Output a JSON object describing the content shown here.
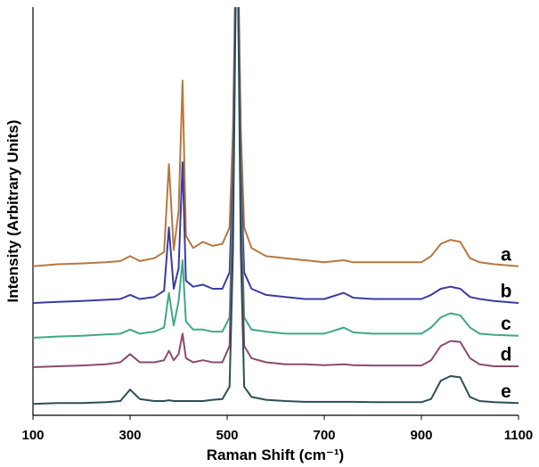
{
  "chart_data": {
    "type": "line",
    "x_label": "Raman Shift (cm⁻¹)",
    "y_label": "Intensity (Arbitrary Units)",
    "x": [
      100,
      150,
      200,
      250,
      280,
      300,
      320,
      350,
      370,
      380,
      390,
      400,
      408,
      415,
      430,
      450,
      470,
      490,
      505,
      512,
      520,
      528,
      535,
      550,
      580,
      620,
      660,
      700,
      740,
      760,
      800,
      850,
      900,
      920,
      940,
      960,
      980,
      1000,
      1020,
      1050,
      1100
    ],
    "xlim": [
      100,
      1100
    ],
    "xticks": [
      100,
      300,
      500,
      700,
      900,
      1100
    ],
    "ylim": [
      0,
      100
    ],
    "series": [
      {
        "name": "a",
        "color": "#b8773f",
        "values": [
          36.5,
          37,
          37.2,
          37.5,
          37.8,
          39,
          37.8,
          38.5,
          40,
          61.5,
          40.5,
          50,
          82,
          44,
          41,
          42.5,
          41.5,
          42,
          46,
          70,
          130,
          70,
          46,
          41,
          39,
          38.5,
          38,
          37.5,
          38,
          37.5,
          37.5,
          37.5,
          37.5,
          39,
          42,
          43,
          42.5,
          38.5,
          37.5,
          37,
          36.5
        ]
      },
      {
        "name": "b",
        "color": "#3a3ca0",
        "values": [
          27.5,
          27.8,
          28,
          28.3,
          28.5,
          29.5,
          28.5,
          29,
          30.5,
          46,
          31,
          36,
          62,
          33,
          31.5,
          32,
          31,
          31,
          35,
          60,
          130,
          60,
          35,
          31,
          29.5,
          29,
          28.5,
          28.5,
          30,
          28.8,
          28.5,
          28.5,
          28.5,
          29.5,
          31,
          31.5,
          31,
          29,
          28.5,
          28,
          27.5
        ]
      },
      {
        "name": "c",
        "color": "#3fa883",
        "values": [
          19,
          19.3,
          19.5,
          19.8,
          20,
          21,
          20,
          20.5,
          21.5,
          30,
          22,
          28,
          38,
          23,
          21,
          21,
          20.5,
          20.5,
          24,
          55,
          130,
          55,
          24,
          21,
          20.5,
          20,
          20,
          20,
          21.5,
          20.3,
          20,
          20,
          20,
          21.5,
          24,
          25,
          24.5,
          21.5,
          20,
          19.7,
          19.5
        ]
      },
      {
        "name": "d",
        "color": "#8a4a6e",
        "values": [
          11.8,
          12,
          12.2,
          12.5,
          13,
          15,
          13,
          13,
          13.5,
          15.8,
          13.5,
          15,
          20,
          14,
          13,
          13.5,
          13,
          13,
          17,
          50,
          130,
          50,
          17,
          14,
          13,
          12.5,
          12.5,
          12.3,
          12.5,
          12.3,
          12.2,
          12.2,
          12.2,
          13.5,
          17,
          18.2,
          18,
          14,
          12.5,
          12,
          12
        ]
      },
      {
        "name": "e",
        "color": "#2d4e55",
        "values": [
          2.8,
          3,
          3,
          3.2,
          3.5,
          6.3,
          4,
          3.5,
          3.5,
          3.7,
          3.5,
          3.5,
          3.5,
          3.5,
          3.5,
          3.5,
          3.8,
          4,
          7,
          40,
          130,
          40,
          7,
          4.5,
          3.8,
          3.5,
          3.3,
          3.3,
          3.3,
          3.3,
          3.2,
          3.2,
          3.2,
          4,
          8.5,
          9.6,
          9.3,
          4.5,
          3.5,
          3.2,
          3
        ]
      }
    ]
  }
}
